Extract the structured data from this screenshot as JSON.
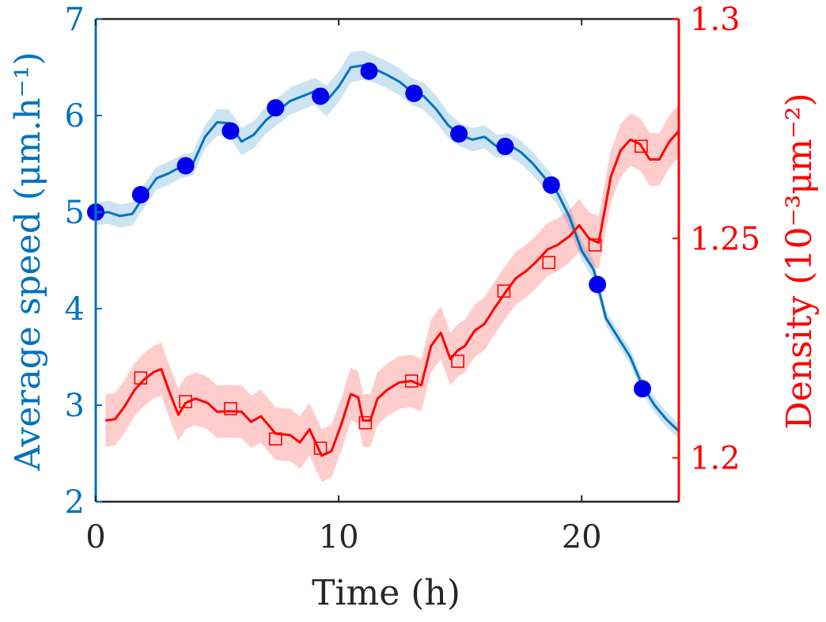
{
  "chart_data": {
    "type": "line",
    "xlabel": "Time (h)",
    "ylabel_left": "Average speed (μm.h⁻¹)",
    "ylabel_right": "Density (10⁻³μm⁻²)",
    "xlim": [
      0,
      24
    ],
    "ylim_left": [
      2,
      7
    ],
    "ylim_right": [
      1.19,
      1.3
    ],
    "x_ticks": [
      0,
      10,
      20
    ],
    "y_ticks_left": [
      2,
      3,
      4,
      5,
      6,
      7
    ],
    "y_ticks_right": [
      1.2,
      1.25,
      1.3
    ],
    "y_tick_labels_right": [
      "1.2",
      "1.25",
      "1.3"
    ],
    "grid": false,
    "legend": "none",
    "colors": {
      "speed": "#0072BD",
      "speed_marker": "#0000EE",
      "density": "#FF0000"
    },
    "series": [
      {
        "axis": "left",
        "marker": "filled-circle",
        "x": [
          0,
          0.5,
          1,
          1.5,
          2,
          2.5,
          3,
          3.5,
          4,
          4.5,
          5,
          5.5,
          6,
          6.5,
          7,
          7.5,
          8,
          8.5,
          9,
          9.5,
          10,
          10.5,
          11,
          11.5,
          12,
          12.5,
          13,
          13.5,
          14,
          14.5,
          15,
          15.5,
          16,
          16.5,
          17,
          17.5,
          18,
          18.5,
          19,
          19.5,
          20,
          20.5,
          21,
          21.5,
          22,
          22.5,
          23,
          23.5,
          24
        ],
        "y": [
          4.98,
          5.0,
          4.96,
          4.98,
          5.17,
          5.35,
          5.4,
          5.47,
          5.5,
          5.78,
          5.93,
          5.92,
          5.73,
          5.8,
          5.95,
          6.05,
          6.15,
          6.2,
          6.25,
          6.15,
          6.3,
          6.5,
          6.52,
          6.48,
          6.42,
          6.35,
          6.25,
          6.2,
          6.07,
          5.9,
          5.8,
          5.75,
          5.78,
          5.68,
          5.7,
          5.62,
          5.5,
          5.35,
          5.2,
          4.95,
          4.6,
          4.4,
          3.9,
          3.7,
          3.5,
          3.2,
          3.0,
          2.85,
          2.73
        ],
        "band": [
          0.12,
          0.12,
          0.12,
          0.12,
          0.12,
          0.12,
          0.12,
          0.12,
          0.12,
          0.12,
          0.14,
          0.14,
          0.14,
          0.14,
          0.14,
          0.14,
          0.14,
          0.14,
          0.14,
          0.16,
          0.16,
          0.16,
          0.15,
          0.14,
          0.14,
          0.14,
          0.14,
          0.14,
          0.14,
          0.13,
          0.12,
          0.12,
          0.12,
          0.12,
          0.12,
          0.12,
          0.12,
          0.12,
          0.12,
          0.12,
          0.1,
          0.1,
          0.08,
          0.08,
          0.08,
          0.08,
          0.08,
          0.08,
          0.08
        ],
        "markers_x": [
          0,
          1.85,
          3.7,
          5.55,
          7.4,
          9.25,
          11.25,
          13.1,
          14.95,
          16.85,
          18.75,
          20.65,
          22.5
        ],
        "markers_y": [
          5.0,
          5.18,
          5.48,
          5.84,
          6.08,
          6.2,
          6.46,
          6.23,
          5.81,
          5.68,
          5.28,
          4.25,
          3.17
        ]
      },
      {
        "axis": "right",
        "marker": "open-square",
        "x": [
          0.4,
          0.8,
          1.2,
          1.6,
          2.0,
          2.4,
          2.7,
          3.0,
          3.4,
          3.7,
          4.1,
          4.6,
          5.0,
          5.5,
          6.0,
          6.4,
          6.8,
          7.4,
          8.0,
          8.4,
          8.8,
          9.3,
          9.7,
          10.1,
          10.5,
          10.8,
          11.0,
          11.3,
          11.6,
          12.0,
          12.5,
          13.0,
          13.4,
          13.8,
          14.2,
          14.6,
          14.9,
          15.2,
          15.6,
          16.0,
          16.4,
          16.9,
          17.3,
          17.7,
          18.1,
          18.6,
          19.0,
          19.5,
          19.9,
          20.3,
          20.7,
          21.2,
          21.6,
          22.0,
          22.4,
          22.8,
          23.2,
          23.6,
          24.0
        ],
        "y": [
          1.2085,
          1.2088,
          1.2118,
          1.2155,
          1.2179,
          1.2196,
          1.2202,
          1.2155,
          1.2098,
          1.2125,
          1.2135,
          1.2125,
          1.2105,
          1.2106,
          1.2105,
          1.2082,
          1.2095,
          1.2055,
          1.2052,
          1.2035,
          1.2065,
          1.2005,
          1.2015,
          1.2075,
          1.2145,
          1.2138,
          1.2085,
          1.2085,
          1.2135,
          1.2155,
          1.2172,
          1.2175,
          1.2165,
          1.2255,
          1.2285,
          1.2225,
          1.2245,
          1.2255,
          1.229,
          1.2305,
          1.234,
          1.238,
          1.241,
          1.2425,
          1.2445,
          1.2475,
          1.2485,
          1.2505,
          1.253,
          1.25,
          1.249,
          1.264,
          1.27,
          1.2725,
          1.2715,
          1.268,
          1.268,
          1.272,
          1.2745
        ],
        "band": [
          0.006,
          0.006,
          0.006,
          0.006,
          0.006,
          0.006,
          0.006,
          0.006,
          0.006,
          0.006,
          0.006,
          0.006,
          0.006,
          0.006,
          0.006,
          0.006,
          0.006,
          0.006,
          0.006,
          0.006,
          0.006,
          0.006,
          0.006,
          0.006,
          0.006,
          0.006,
          0.006,
          0.006,
          0.006,
          0.006,
          0.006,
          0.006,
          0.006,
          0.006,
          0.006,
          0.006,
          0.006,
          0.006,
          0.006,
          0.006,
          0.006,
          0.006,
          0.006,
          0.006,
          0.006,
          0.006,
          0.006,
          0.006,
          0.006,
          0.006,
          0.006,
          0.006,
          0.006,
          0.006,
          0.006,
          0.006,
          0.006,
          0.006,
          0.006
        ],
        "markers_x": [
          1.85,
          3.7,
          5.55,
          7.4,
          9.25,
          11.1,
          13.0,
          14.9,
          16.8,
          18.65,
          20.55,
          22.45
        ],
        "markers_y": [
          1.2182,
          1.2128,
          1.2112,
          1.2043,
          1.2022,
          1.208,
          1.2175,
          1.222,
          1.238,
          1.2445,
          1.2485,
          1.271
        ]
      }
    ]
  }
}
